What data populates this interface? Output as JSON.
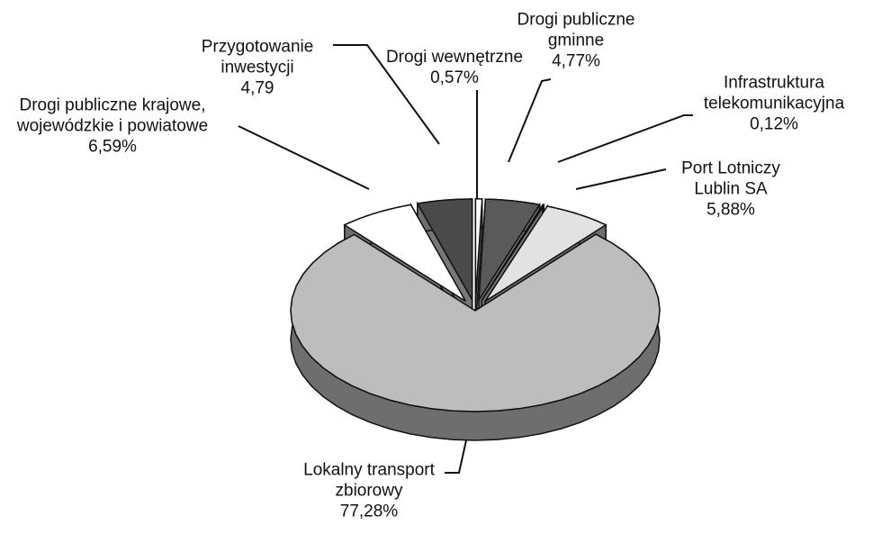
{
  "chart_data": {
    "type": "pie",
    "categories": [
      "Drogi wewnętrzne",
      "Drogi publiczne gminne",
      "Infrastruktura telekomunikacyjna",
      "Port Lotniczy Lublin SA",
      "Lokalny transport zbiorowy",
      "Drogi publiczne krajowe, wojewódzkie i powiatowe",
      "Przygotowanie inwestycji"
    ],
    "values": [
      0.57,
      4.77,
      0.12,
      5.88,
      77.28,
      6.59,
      4.79
    ],
    "value_labels": [
      "0,57%",
      "4,77%",
      "0,12%",
      "5,88%",
      "77,28%",
      "6,59%",
      "4,79"
    ],
    "colors": [
      "#ffffff",
      "#5a5a5a",
      "#8a8a8a",
      "#e2e2e2",
      "#bdbdbd",
      "#ffffff",
      "#4a4a4a"
    ]
  }
}
